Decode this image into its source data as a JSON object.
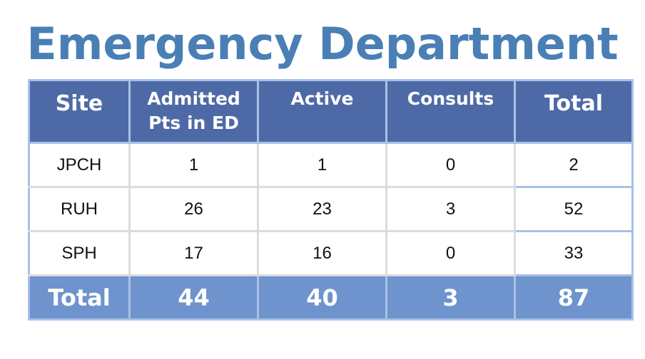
{
  "title": "Emergency Department",
  "colors": {
    "title": "#4a7fb5",
    "header_bg": "#4e6aa6",
    "footer_bg": "#6e93cd",
    "cell_border": "#a9c0e8"
  },
  "table": {
    "headers": {
      "site": "Site",
      "admitted_line1": "Admitted",
      "admitted_line2": "Pts in ED",
      "active": "Active",
      "consults": "Consults",
      "total": "Total"
    },
    "rows": [
      {
        "site": "JPCH",
        "admitted": "1",
        "active": "1",
        "consults": "0",
        "total": "2"
      },
      {
        "site": "RUH",
        "admitted": "26",
        "active": "23",
        "consults": "3",
        "total": "52"
      },
      {
        "site": "SPH",
        "admitted": "17",
        "active": "16",
        "consults": "0",
        "total": "33"
      }
    ],
    "totals": {
      "label": "Total",
      "admitted": "44",
      "active": "40",
      "consults": "3",
      "total": "87"
    }
  }
}
